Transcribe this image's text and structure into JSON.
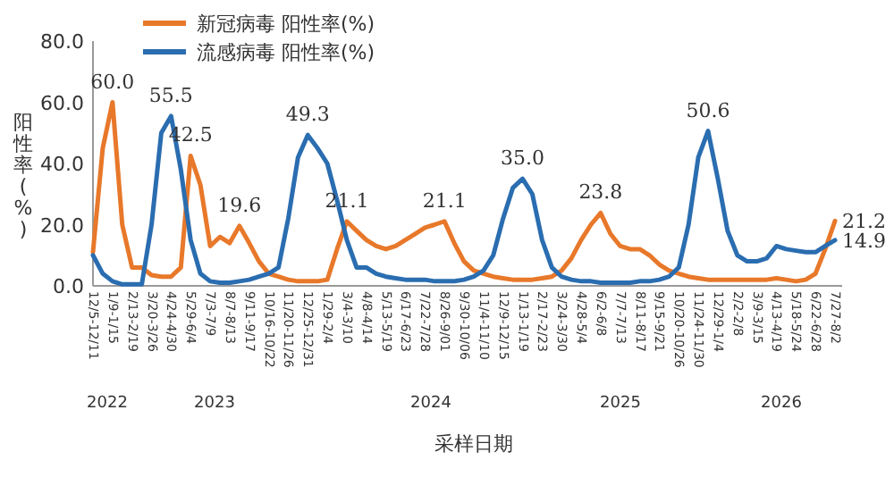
{
  "chart_data": {
    "type": "line",
    "xlabel": "采样日期",
    "ylabel": "阳性率(%)",
    "legend": "top",
    "grid": false,
    "marker": "none",
    "line_style": "solid",
    "ylim": [
      0,
      80
    ],
    "yticks": [
      {
        "value": 0,
        "label": "0.0"
      },
      {
        "value": 20,
        "label": "20.0"
      },
      {
        "value": 40,
        "label": "40.0"
      },
      {
        "value": 60,
        "label": "60.0"
      },
      {
        "value": 80,
        "label": "80.0"
      }
    ],
    "categories": [
      "12/5-12/11",
      null,
      "1/9-1/15",
      null,
      "2/13-2/19",
      null,
      "3/20-3/26",
      null,
      "4/24-4/30",
      null,
      "5/29-6/4",
      null,
      "7/3-7/9",
      null,
      "8/7-8/13",
      null,
      "9/11-9/17",
      null,
      "10/16-10/22",
      null,
      "11/20-11/26",
      null,
      "12/25-12/31",
      null,
      "1/29-2/4",
      null,
      "3/4-3/10",
      null,
      "4/8-4/14",
      null,
      "5/13-5/19",
      null,
      "6/17-6/23",
      null,
      "7/22-7/28",
      null,
      "8/26-9/01",
      null,
      "9/30-10/06",
      null,
      "11/4-11/10",
      null,
      "12/9-12/15",
      null,
      "1/13-1/19",
      null,
      "2/17-2/23",
      null,
      "3/24-3/30",
      null,
      "4/28-5/4",
      null,
      "6/2-6/8",
      null,
      "7/7-7/13",
      null,
      "8/11-8/17",
      null,
      "9/15-9/21",
      null,
      "10/20-10/26",
      null,
      "11/24-11/30",
      null,
      "12/29-1/4",
      null,
      "2/2-2/8",
      null,
      "3/9-3/15",
      null,
      "4/13-4/19",
      null,
      "5/18-5/24",
      null,
      "6/22-6/28",
      null,
      "7/27-8/2"
    ],
    "series": [
      {
        "name": "新冠病毒 阳性率(%)",
        "color": "#e8782a",
        "values": [
          11,
          45,
          60.0,
          20,
          6,
          6,
          3.5,
          3,
          3,
          6,
          42.5,
          33,
          13,
          16,
          14,
          19.6,
          14,
          8,
          4,
          3,
          2,
          1.5,
          1.5,
          1.5,
          2,
          12,
          21.1,
          18,
          15,
          13,
          12,
          13,
          15,
          17,
          19,
          20,
          21.1,
          14,
          8,
          5,
          4,
          3,
          2.5,
          2,
          2,
          2,
          2.5,
          3,
          5,
          9,
          15,
          20,
          23.8,
          17,
          13,
          12,
          12,
          10,
          7,
          5,
          4,
          3,
          2.5,
          2,
          2,
          2,
          2,
          2,
          2,
          2,
          2.5,
          2,
          1.5,
          2,
          4,
          12,
          21.2
        ],
        "value_labels": [
          null,
          null,
          "60.0",
          null,
          null,
          null,
          null,
          null,
          null,
          null,
          "42.5",
          null,
          null,
          null,
          null,
          "19.6",
          null,
          null,
          null,
          null,
          null,
          null,
          null,
          null,
          null,
          null,
          "21.1",
          null,
          null,
          null,
          null,
          null,
          null,
          null,
          null,
          null,
          "21.1",
          null,
          null,
          null,
          null,
          null,
          null,
          null,
          null,
          null,
          null,
          null,
          null,
          null,
          null,
          null,
          "23.8",
          null,
          null,
          null,
          null,
          null,
          null,
          null,
          null,
          null,
          null,
          null,
          null,
          null,
          null,
          null,
          null,
          null,
          null,
          null,
          null,
          null,
          null,
          null,
          "21.2"
        ]
      },
      {
        "name": "流感病毒 阳性率(%)",
        "color": "#2a6db0",
        "values": [
          10,
          4,
          1.5,
          0.5,
          0.5,
          0.5,
          20,
          50,
          55.5,
          38,
          15,
          4,
          1.5,
          1,
          1,
          1.5,
          2,
          3,
          4,
          6,
          22,
          42,
          49.3,
          45,
          40,
          28,
          15,
          6,
          6,
          4,
          3,
          2.5,
          2,
          2,
          2,
          1.5,
          1.5,
          1.5,
          2,
          3,
          5,
          10,
          22,
          32,
          35.0,
          30,
          15,
          6,
          3,
          2,
          1.5,
          1.5,
          1,
          1,
          1,
          1,
          1.5,
          1.5,
          2,
          3,
          6,
          20,
          42,
          50.6,
          35,
          18,
          10,
          8,
          8,
          9,
          13,
          12,
          11.5,
          11,
          11,
          13,
          14.9
        ],
        "value_labels": [
          null,
          null,
          null,
          null,
          null,
          null,
          null,
          null,
          "55.5",
          null,
          null,
          null,
          null,
          null,
          null,
          null,
          null,
          null,
          null,
          null,
          null,
          null,
          "49.3",
          null,
          null,
          null,
          null,
          null,
          null,
          null,
          null,
          null,
          null,
          null,
          null,
          null,
          null,
          null,
          null,
          null,
          null,
          null,
          null,
          null,
          "35.0",
          null,
          null,
          null,
          null,
          null,
          null,
          null,
          null,
          null,
          null,
          null,
          null,
          null,
          null,
          null,
          null,
          null,
          null,
          "50.6",
          null,
          null,
          null,
          null,
          null,
          null,
          null,
          null,
          null,
          null,
          null,
          null,
          "14.9"
        ]
      }
    ],
    "annotations": [
      "2022",
      "2023",
      "2024",
      "2025",
      "2026"
    ]
  }
}
